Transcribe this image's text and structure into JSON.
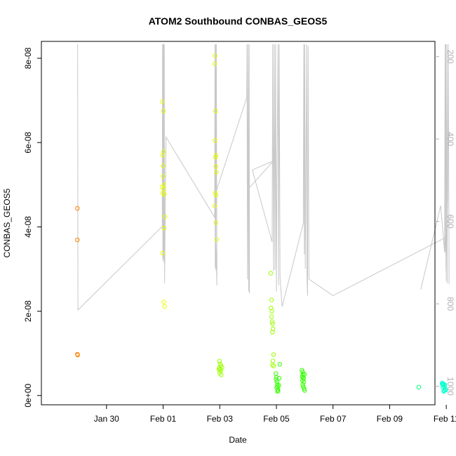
{
  "chart_data": {
    "type": "scatter",
    "title": "ATOM2 Southbound CONBAS_GEOS5",
    "xlabel": "Date",
    "ylabel": "CONBAS_GEOS5",
    "xlim": [
      -2.3,
      11.6
    ],
    "ylim": [
      -2.2e-09,
      8.4e-08
    ],
    "y2lim": [
      1045,
      163
    ],
    "x_ticks": [
      {
        "value": 0,
        "label": "Jan 30"
      },
      {
        "value": 2,
        "label": "Feb 01"
      },
      {
        "value": 4,
        "label": "Feb 03"
      },
      {
        "value": 6,
        "label": "Feb 05"
      },
      {
        "value": 8,
        "label": "Feb 07"
      },
      {
        "value": 10,
        "label": "Feb 09"
      },
      {
        "value": 12,
        "label": "Feb 11"
      }
    ],
    "y_ticks": [
      {
        "value": 0,
        "label": "0e+00"
      },
      {
        "value": 2e-08,
        "label": "2e-08"
      },
      {
        "value": 4e-08,
        "label": "4e-08"
      },
      {
        "value": 6e-08,
        "label": "6e-08"
      },
      {
        "value": 8e-08,
        "label": "8e-08"
      }
    ],
    "y2_ticks": [
      {
        "value": 200,
        "label": "200"
      },
      {
        "value": 400,
        "label": "400"
      },
      {
        "value": 600,
        "label": "600"
      },
      {
        "value": 800,
        "label": "800"
      },
      {
        "value": 1000,
        "label": "1000"
      }
    ],
    "grid": false,
    "point_series": [
      {
        "color": "#ff7f00",
        "points": [
          [
            -1.03,
            4.44e-08
          ],
          [
            -1.03,
            3.69e-08
          ],
          [
            -1.03,
            9.8e-09
          ],
          [
            -1.02,
            9.6e-09
          ]
        ]
      },
      {
        "color": "#e8ff00",
        "points": [
          [
            1.97,
            6.97e-08
          ],
          [
            2.01,
            6.75e-08
          ],
          [
            1.98,
            5.7e-08
          ],
          [
            2.0,
            5.45e-08
          ],
          [
            1.96,
            4.95e-08
          ],
          [
            2.02,
            4.9e-08
          ],
          [
            1.99,
            4.8e-08
          ],
          [
            2.04,
            4.77e-08
          ],
          [
            2.06,
            4.24e-08
          ],
          [
            2.03,
            3.97e-08
          ],
          [
            1.98,
            3.38e-08
          ],
          [
            2.02,
            2.22e-08
          ],
          [
            2.05,
            2.11e-08
          ],
          [
            2.0,
            5.2e-08
          ],
          [
            2.03,
            5e-08
          ],
          [
            2.01,
            5.78e-08
          ],
          [
            3.84,
            8.06e-08
          ],
          [
            3.82,
            7.87e-08
          ],
          [
            3.85,
            6.75e-08
          ],
          [
            3.83,
            6.05e-08
          ],
          [
            3.87,
            5.7e-08
          ],
          [
            3.86,
            5.43e-08
          ],
          [
            3.88,
            5.3e-08
          ],
          [
            3.84,
            4.8e-08
          ],
          [
            3.87,
            4.75e-08
          ],
          [
            3.82,
            4.5e-08
          ],
          [
            3.86,
            4.1e-08
          ],
          [
            3.89,
            3.7e-08
          ],
          [
            3.85,
            5.65e-08
          ]
        ]
      },
      {
        "color": "#9cff00",
        "points": [
          [
            3.99,
            8.15e-09
          ],
          [
            4.01,
            7.5e-09
          ],
          [
            4.04,
            7.05e-09
          ],
          [
            3.98,
            6.5e-09
          ],
          [
            4.02,
            6.2e-09
          ],
          [
            4.03,
            5.8e-09
          ],
          [
            4.0,
            5.3e-09
          ],
          [
            4.05,
            4.9e-09
          ],
          [
            4.08,
            6.6e-09
          ],
          [
            3.97,
            6.1e-09
          ],
          [
            5.8,
            2.9e-08
          ],
          [
            5.83,
            2.27e-08
          ],
          [
            5.81,
            2.08e-08
          ],
          [
            5.84,
            2e-08
          ],
          [
            5.83,
            1.87e-08
          ],
          [
            5.85,
            1.75e-08
          ],
          [
            5.87,
            1.7e-08
          ],
          [
            5.88,
            1.58e-08
          ],
          [
            5.86,
            1.5e-08
          ],
          [
            5.9,
            9.7e-09
          ],
          [
            5.88,
            8.2e-09
          ],
          [
            5.86,
            7.3e-09
          ],
          [
            5.9,
            7e-09
          ]
        ]
      },
      {
        "color": "#33ff00",
        "points": [
          [
            5.98,
            5.2e-09
          ],
          [
            6.0,
            4.3e-09
          ],
          [
            5.99,
            3.8e-09
          ],
          [
            6.02,
            3.3e-09
          ],
          [
            6.03,
            2.7e-09
          ],
          [
            6.04,
            2.2e-09
          ],
          [
            6.01,
            1.9e-09
          ],
          [
            6.05,
            1.5e-09
          ],
          [
            6.06,
            1.1e-09
          ],
          [
            6.1,
            4.1e-09
          ],
          [
            6.12,
            7.4e-09
          ],
          [
            6.09,
            2.4e-09
          ],
          [
            6.04,
            1e-09
          ],
          [
            6.9,
            6e-09
          ],
          [
            6.93,
            5.6e-09
          ],
          [
            6.94,
            5e-09
          ],
          [
            6.91,
            4.5e-09
          ],
          [
            6.95,
            4.3e-09
          ],
          [
            6.96,
            4e-09
          ],
          [
            6.92,
            3.6e-09
          ],
          [
            6.97,
            3.2e-09
          ],
          [
            6.93,
            2.6e-09
          ],
          [
            6.95,
            2.1e-09
          ],
          [
            6.98,
            1.6e-09
          ],
          [
            7.0,
            1.2e-09
          ],
          [
            6.99,
            5e-09
          ]
        ]
      },
      {
        "color": "#00ff80",
        "points": [
          [
            11.03,
            2e-09
          ]
        ]
      },
      {
        "color": "#00ffcc",
        "points": [
          [
            11.85,
            3e-09
          ],
          [
            11.88,
            2.8e-09
          ],
          [
            11.9,
            2.7e-09
          ],
          [
            11.86,
            2.5e-09
          ],
          [
            11.92,
            2.3e-09
          ],
          [
            11.94,
            2e-09
          ],
          [
            11.89,
            1.8e-09
          ],
          [
            11.96,
            1.5e-09
          ],
          [
            11.93,
            1.2e-09
          ],
          [
            11.98,
            1.3e-09
          ],
          [
            11.91,
            1e-09
          ],
          [
            11.95,
            2.6e-09
          ]
        ]
      }
    ],
    "line_series": [
      {
        "color": "#c8c8c8",
        "points": [
          [
            -1.02,
            170
          ],
          [
            -1.01,
            815
          ],
          [
            1.97,
            612
          ],
          [
            1.98,
            170
          ],
          [
            1.99,
            695
          ],
          [
            2.0,
            170
          ],
          [
            2.01,
            690
          ],
          [
            2.02,
            170
          ],
          [
            2.03,
            700
          ],
          [
            2.04,
            170
          ],
          [
            2.05,
            750
          ],
          [
            2.1,
            395
          ],
          [
            3.82,
            590
          ],
          [
            3.83,
            170
          ],
          [
            3.84,
            712
          ],
          [
            3.85,
            170
          ],
          [
            3.86,
            718
          ],
          [
            3.88,
            170
          ],
          [
            3.9,
            755
          ],
          [
            3.84,
            590
          ],
          [
            3.86,
            530
          ],
          [
            4.95,
            300
          ],
          [
            4.96,
            170
          ],
          [
            4.98,
            740
          ],
          [
            5.0,
            170
          ],
          [
            5.02,
            770
          ],
          [
            5.04,
            170
          ],
          [
            5.05,
            775
          ],
          [
            5.02,
            520
          ],
          [
            5.9,
            453
          ],
          [
            5.15,
            475
          ],
          [
            5.85,
            650
          ],
          [
            5.87,
            170
          ],
          [
            5.9,
            720
          ],
          [
            5.92,
            170
          ],
          [
            5.95,
            717
          ],
          [
            5.97,
            170
          ],
          [
            6.0,
            770
          ],
          [
            6.02,
            500
          ],
          [
            6.06,
            170
          ],
          [
            6.08,
            755
          ],
          [
            6.1,
            170
          ],
          [
            6.13,
            736
          ],
          [
            6.2,
            807
          ],
          [
            6.95,
            605
          ],
          [
            6.97,
            170
          ],
          [
            6.99,
            680
          ],
          [
            7.0,
            170
          ],
          [
            7.02,
            715
          ],
          [
            7.04,
            500
          ],
          [
            7.07,
            170
          ],
          [
            7.08,
            733
          ],
          [
            7.1,
            780
          ],
          [
            7.12,
            175
          ],
          [
            7.15,
            740
          ],
          [
            8.0,
            780
          ],
          [
            11.95,
            640
          ],
          [
            11.97,
            675
          ],
          [
            11.98,
            170
          ],
          [
            12.0,
            745
          ],
          [
            12.02,
            170
          ],
          [
            12.04,
            750
          ]
        ]
      },
      {
        "color": "#c8c8c8",
        "points": [
          [
            11.1,
            765
          ],
          [
            11.8,
            562
          ],
          [
            11.9,
            640
          ],
          [
            11.94,
            675
          ],
          [
            11.96,
            170
          ],
          [
            11.99,
            720
          ],
          [
            12.05,
            540
          ],
          [
            12.07,
            170
          ],
          [
            12.1,
            752
          ]
        ]
      }
    ]
  }
}
